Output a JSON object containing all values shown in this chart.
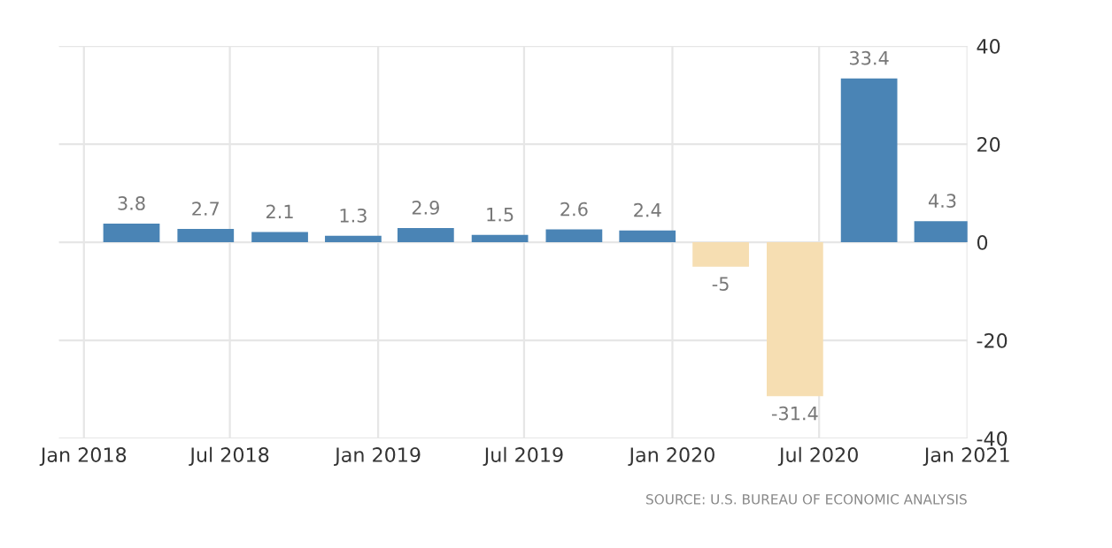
{
  "chart_data": {
    "type": "bar",
    "x": [
      "2018-03",
      "2018-06",
      "2018-09",
      "2018-12",
      "2019-03",
      "2019-06",
      "2019-09",
      "2019-12",
      "2020-03",
      "2020-06",
      "2020-09",
      "2020-12"
    ],
    "values": [
      3.8,
      2.7,
      2.1,
      1.3,
      2.9,
      1.5,
      2.6,
      2.4,
      -5,
      -31.4,
      33.4,
      4.3
    ],
    "colors": [
      "#4a84b5",
      "#4a84b5",
      "#4a84b5",
      "#4a84b5",
      "#4a84b5",
      "#4a84b5",
      "#4a84b5",
      "#4a84b5",
      "#f6deb2",
      "#f6deb2",
      "#4a84b5",
      "#4a84b5"
    ],
    "data_labels": true,
    "xlim": [
      "2017-12",
      "2021-01"
    ],
    "xticks": [
      {
        "value": "2018-01",
        "label": "Jan 2018"
      },
      {
        "value": "2018-07",
        "label": "Jul 2018"
      },
      {
        "value": "2019-01",
        "label": "Jan 2019"
      },
      {
        "value": "2019-07",
        "label": "Jul 2019"
      },
      {
        "value": "2020-01",
        "label": "Jan 2020"
      },
      {
        "value": "2020-07",
        "label": "Jul 2020"
      },
      {
        "value": "2021-01",
        "label": "Jan 2021"
      }
    ],
    "ylim": [
      -40,
      40
    ],
    "yticks": [
      -40,
      -20,
      0,
      20,
      40
    ],
    "grid": true,
    "annotations": [
      "SOURCE: U.S. BUREAU OF ECONOMIC ANALYSIS"
    ]
  }
}
